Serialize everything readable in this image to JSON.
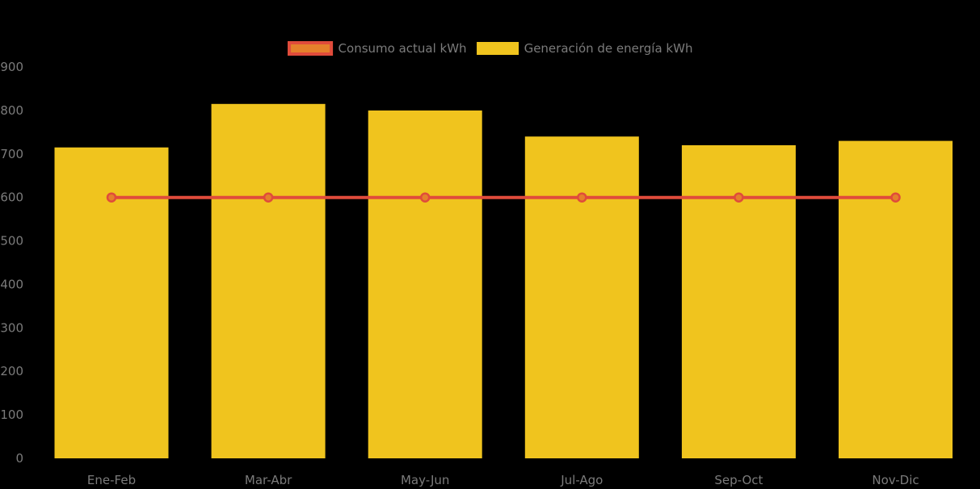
{
  "page": {
    "background": "#000000",
    "axis_text_color": "#7b7b7b"
  },
  "legend": {
    "items": [
      {
        "label": "Consumo actual kWh",
        "series": "consumo",
        "swatch_fill": "#e5802b",
        "swatch_border": "#e04b3b"
      },
      {
        "label": "Generación de energía kWh",
        "series": "generacion",
        "swatch_fill": "#f0c41e"
      }
    ]
  },
  "chart_data": {
    "type": "bar",
    "title": "",
    "xlabel": "",
    "ylabel": "",
    "categories": [
      "Ene-Feb",
      "Mar-Abr",
      "May-Jun",
      "Jul-Ago",
      "Sep-Oct",
      "Nov-Dic"
    ],
    "series": [
      {
        "name": "Generación de energía kWh",
        "type": "bar",
        "color": "#f0c41e",
        "values": [
          715,
          815,
          800,
          740,
          720,
          730
        ]
      },
      {
        "name": "Consumo actual kWh",
        "type": "line",
        "color": "#e04b3b",
        "marker_fill": "#e5802b",
        "values": [
          600,
          600,
          600,
          600,
          600,
          600
        ]
      }
    ],
    "ylim": [
      0,
      900
    ],
    "ytick_step": 100,
    "yticks": [
      0,
      100,
      200,
      300,
      400,
      500,
      600,
      700,
      800,
      900
    ],
    "grid": false,
    "legend_position": "top"
  }
}
